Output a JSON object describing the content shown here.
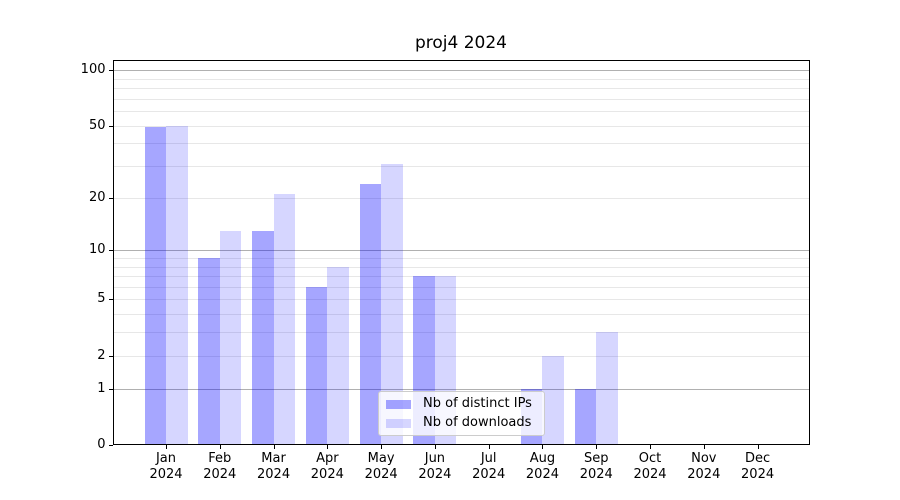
{
  "chart_data": {
    "type": "bar",
    "title": "proj4 2024",
    "categories": [
      "Jan",
      "Feb",
      "Mar",
      "Apr",
      "May",
      "Jun",
      "Jul",
      "Aug",
      "Sep",
      "Oct",
      "Nov",
      "Dec"
    ],
    "category_year": "2024",
    "series": [
      {
        "name": "Nb of distinct IPs",
        "color": "rgba(0,0,255,0.35)",
        "values": [
          49,
          9,
          13,
          6,
          24,
          7,
          0,
          1,
          1,
          0,
          0,
          0
        ]
      },
      {
        "name": "Nb of downloads",
        "color": "rgba(0,0,255,0.16)",
        "values": [
          50,
          13,
          21,
          8,
          31,
          7,
          0,
          2,
          3,
          0,
          0,
          0
        ]
      }
    ],
    "yscale": "log1p",
    "ylim": [
      0,
      113
    ],
    "yticks": [
      0,
      1,
      2,
      5,
      10,
      20,
      50,
      100
    ],
    "major_gridlines": [
      1,
      10,
      100
    ],
    "minor_gridlines": [
      2,
      3,
      4,
      5,
      6,
      7,
      8,
      9,
      20,
      30,
      40,
      50,
      60,
      70,
      80,
      90
    ],
    "grid": true,
    "legend_position": "lower center inside",
    "colors": {
      "major_grid": "#b0b0b0",
      "minor_grid": "#e7e7e7",
      "axis": "#000000",
      "background": "#ffffff"
    }
  }
}
